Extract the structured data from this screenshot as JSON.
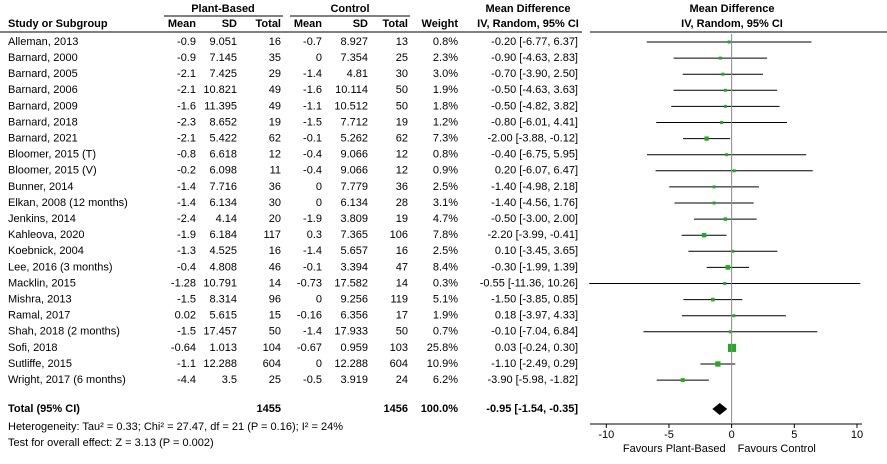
{
  "header": {
    "study": "Study or Subgroup",
    "group1": "Plant-Based",
    "group2": "Control",
    "columns": [
      "Mean",
      "SD",
      "Total",
      "Mean",
      "SD",
      "Total",
      "Weight"
    ],
    "md": "Mean Difference",
    "method": "IV, Random, 95% CI"
  },
  "rows": [
    {
      "study": "Alleman, 2013",
      "values": [
        -0.9,
        9.051,
        16,
        -0.7,
        8.927,
        13
      ],
      "weight": 0.8,
      "weight_label": "0.8%",
      "ci_label": "-0.20 [-6.77, 6.37]",
      "md": -0.2,
      "ci": [
        -6.77,
        6.37
      ]
    },
    {
      "study": "Barnard, 2000",
      "values": [
        -0.9,
        7.145,
        35,
        0,
        7.354,
        25
      ],
      "weight": 2.3,
      "weight_label": "2.3%",
      "ci_label": "-0.90 [-4.63, 2.83]",
      "md": -0.9,
      "ci": [
        -4.63,
        2.83
      ]
    },
    {
      "study": "Barnard, 2005",
      "values": [
        -2.1,
        7.425,
        29,
        -1.4,
        4.81,
        30
      ],
      "weight": 3.0,
      "weight_label": "3.0%",
      "ci_label": "-0.70 [-3.90, 2.50]",
      "md": -0.7,
      "ci": [
        -3.9,
        2.5
      ]
    },
    {
      "study": "Barnard, 2006",
      "values": [
        -2.1,
        10.821,
        49,
        -1.6,
        10.114,
        50
      ],
      "weight": 1.9,
      "weight_label": "1.9%",
      "ci_label": "-0.50 [-4.63, 3.63]",
      "md": -0.5,
      "ci": [
        -4.63,
        3.63
      ]
    },
    {
      "study": "Barnard, 2009",
      "values": [
        -1.6,
        11.395,
        49,
        -1.1,
        10.512,
        50
      ],
      "weight": 1.8,
      "weight_label": "1.8%",
      "ci_label": "-0.50 [-4.82, 3.82]",
      "md": -0.5,
      "ci": [
        -4.82,
        3.82
      ]
    },
    {
      "study": "Barnard, 2018",
      "values": [
        -2.3,
        8.652,
        19,
        -1.5,
        7.712,
        19
      ],
      "weight": 1.2,
      "weight_label": "1.2%",
      "ci_label": "-0.80 [-6.01, 4.41]",
      "md": -0.8,
      "ci": [
        -6.01,
        4.41
      ]
    },
    {
      "study": "Barnard, 2021",
      "values": [
        -2.1,
        5.422,
        62,
        -0.1,
        5.262,
        62
      ],
      "weight": 7.3,
      "weight_label": "7.3%",
      "ci_label": "-2.00 [-3.88, -0.12]",
      "md": -2.0,
      "ci": [
        -3.88,
        -0.12
      ]
    },
    {
      "study": "Bloomer, 2015 (T)",
      "values": [
        -0.8,
        6.618,
        12,
        -0.4,
        9.066,
        12
      ],
      "weight": 0.8,
      "weight_label": "0.8%",
      "ci_label": "-0.40 [-6.75, 5.95]",
      "md": -0.4,
      "ci": [
        -6.75,
        5.95
      ]
    },
    {
      "study": "Bloomer, 2015 (V)",
      "values": [
        -0.2,
        6.098,
        11,
        -0.4,
        9.066,
        12
      ],
      "weight": 0.9,
      "weight_label": "0.9%",
      "ci_label": "0.20 [-6.07, 6.47]",
      "md": 0.2,
      "ci": [
        -6.07,
        6.47
      ]
    },
    {
      "study": "Bunner, 2014",
      "values": [
        -1.4,
        7.716,
        36,
        0,
        7.779,
        36
      ],
      "weight": 2.5,
      "weight_label": "2.5%",
      "ci_label": "-1.40 [-4.98, 2.18]",
      "md": -1.4,
      "ci": [
        -4.98,
        2.18
      ]
    },
    {
      "study": "Elkan, 2008 (12 months)",
      "values": [
        -1.4,
        6.134,
        30,
        0,
        6.134,
        28
      ],
      "weight": 3.1,
      "weight_label": "3.1%",
      "ci_label": "-1.40 [-4.56, 1.76]",
      "md": -1.4,
      "ci": [
        -4.56,
        1.76
      ]
    },
    {
      "study": "Jenkins, 2014",
      "values": [
        -2.4,
        4.14,
        20,
        -1.9,
        3.809,
        19
      ],
      "weight": 4.7,
      "weight_label": "4.7%",
      "ci_label": "-0.50 [-3.00, 2.00]",
      "md": -0.5,
      "ci": [
        -3.0,
        2.0
      ]
    },
    {
      "study": "Kahleova, 2020",
      "values": [
        -1.9,
        6.184,
        117,
        0.3,
        7.365,
        106
      ],
      "weight": 7.8,
      "weight_label": "7.8%",
      "ci_label": "-2.20 [-3.99, -0.41]",
      "md": -2.2,
      "ci": [
        -3.99,
        -0.41
      ]
    },
    {
      "study": "Koebnick, 2004",
      "values": [
        -1.3,
        4.525,
        16,
        -1.4,
        5.657,
        16
      ],
      "weight": 2.5,
      "weight_label": "2.5%",
      "ci_label": "0.10 [-3.45, 3.65]",
      "md": 0.1,
      "ci": [
        -3.45,
        3.65
      ]
    },
    {
      "study": "Lee, 2016 (3 months)",
      "values": [
        -0.4,
        4.808,
        46,
        -0.1,
        3.394,
        47
      ],
      "weight": 8.4,
      "weight_label": "8.4%",
      "ci_label": "-0.30 [-1.99, 1.39]",
      "md": -0.3,
      "ci": [
        -1.99,
        1.39
      ]
    },
    {
      "study": "Macklin, 2015",
      "values": [
        -1.28,
        10.791,
        14,
        -0.73,
        17.582,
        14
      ],
      "weight": 0.3,
      "weight_label": "0.3%",
      "ci_label": "-0.55 [-11.36, 10.26]",
      "md": -0.55,
      "ci": [
        -11.36,
        10.26
      ]
    },
    {
      "study": "Mishra, 2013",
      "values": [
        -1.5,
        8.314,
        96,
        0,
        9.256,
        119
      ],
      "weight": 5.1,
      "weight_label": "5.1%",
      "ci_label": "-1.50 [-3.85, 0.85]",
      "md": -1.5,
      "ci": [
        -3.85,
        0.85
      ]
    },
    {
      "study": "Ramal, 2017",
      "values": [
        0.02,
        5.615,
        15,
        -0.16,
        6.356,
        17
      ],
      "weight": 1.9,
      "weight_label": "1.9%",
      "ci_label": "0.18 [-3.97, 4.33]",
      "md": 0.18,
      "ci": [
        -3.97,
        4.33
      ]
    },
    {
      "study": "Shah, 2018 (2 months)",
      "values": [
        -1.5,
        17.457,
        50,
        -1.4,
        17.933,
        50
      ],
      "weight": 0.7,
      "weight_label": "0.7%",
      "ci_label": "-0.10 [-7.04, 6.84]",
      "md": -0.1,
      "ci": [
        -7.04,
        6.84
      ]
    },
    {
      "study": "Sofi, 2018",
      "values": [
        -0.64,
        1.013,
        104,
        -0.67,
        0.959,
        103
      ],
      "weight": 25.8,
      "weight_label": "25.8%",
      "ci_label": "0.03 [-0.24, 0.30]",
      "md": 0.03,
      "ci": [
        -0.24,
        0.3
      ]
    },
    {
      "study": "Sutliffe, 2015",
      "values": [
        -1.1,
        12.288,
        604,
        0,
        12.288,
        604
      ],
      "weight": 10.9,
      "weight_label": "10.9%",
      "ci_label": "-1.10 [-2.49, 0.29]",
      "md": -1.1,
      "ci": [
        -2.49,
        0.29
      ]
    },
    {
      "study": "Wright, 2017 (6 months)",
      "values": [
        -4.4,
        3.5,
        25,
        -0.5,
        3.919,
        24
      ],
      "weight": 6.2,
      "weight_label": "6.2%",
      "ci_label": "-3.90 [-5.98, -1.82]",
      "md": -3.9,
      "ci": [
        -5.98,
        -1.82
      ]
    }
  ],
  "total": {
    "study": "Total (95% CI)",
    "n1": 1455,
    "n2": 1456,
    "weight_label": "100.0%",
    "ci_label": "-0.95 [-1.54, -0.35]",
    "md": -0.95,
    "ci": [
      -1.54,
      -0.35
    ]
  },
  "footnotes": [
    "Heterogeneity: Tau² = 0.33; Chi² = 27.47, df = 21 (P = 0.16); I² = 24%",
    "Test for overall effect: Z = 3.13 (P = 0.002)"
  ],
  "axis": {
    "xlim": [
      -11.3,
      10.4
    ],
    "xticks": [
      -10,
      -5,
      0,
      5,
      10
    ],
    "left_label": "Favours Plant-Based",
    "right_label": "Favours Control"
  },
  "colors": {
    "square": "#22aa22",
    "diamond": "#000000"
  }
}
